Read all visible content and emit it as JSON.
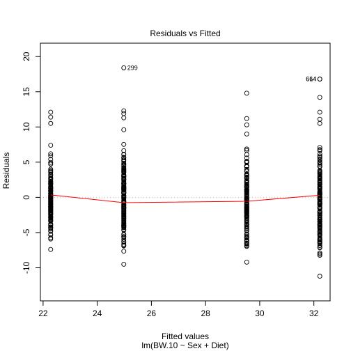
{
  "chart_data": {
    "type": "scatter",
    "title": "Residuals vs Fitted",
    "xlabel": "Fitted values",
    "subtitle": "lm(BW.10 ~ Sex + Diet)",
    "ylabel": "Residuals",
    "xlim": [
      21.9,
      32.6
    ],
    "ylim": [
      -14.7,
      21.9
    ],
    "x_ticks": [
      22,
      24,
      26,
      28,
      30,
      32
    ],
    "y_ticks": [
      -10,
      -5,
      0,
      5,
      10,
      15,
      20
    ],
    "point_color": "#000000",
    "smooth_color": "#ff0000",
    "zero_line_color": "#bebebe",
    "groups": [
      {
        "x": 22.28,
        "ymin": -7.4,
        "ymax": 7.4,
        "extra": [
          12.1,
          11.4,
          10.5
        ]
      },
      {
        "x": 24.98,
        "ymin": -9.5,
        "ymax": 9.6,
        "extra": [
          12.3,
          11.9,
          11.3
        ]
      },
      {
        "x": 29.52,
        "ymin": -9.2,
        "ymax": 9.0,
        "extra": [
          14.8,
          11.2,
          10.3
        ]
      },
      {
        "x": 32.22,
        "ymin": -11.2,
        "ymax": 10.5,
        "extra": [
          14.2,
          12.1,
          11.1
        ]
      }
    ],
    "labeled_points": [
      {
        "x": 24.98,
        "y": 18.4,
        "label": "299"
      },
      {
        "x": 32.22,
        "y": 16.8,
        "label": "614"
      },
      {
        "x": 32.22,
        "y": 16.8,
        "label": "664"
      }
    ],
    "smooth_line": {
      "x": [
        22.28,
        24.98,
        29.52,
        32.22
      ],
      "y": [
        0.35,
        -0.75,
        -0.55,
        0.3
      ]
    }
  }
}
